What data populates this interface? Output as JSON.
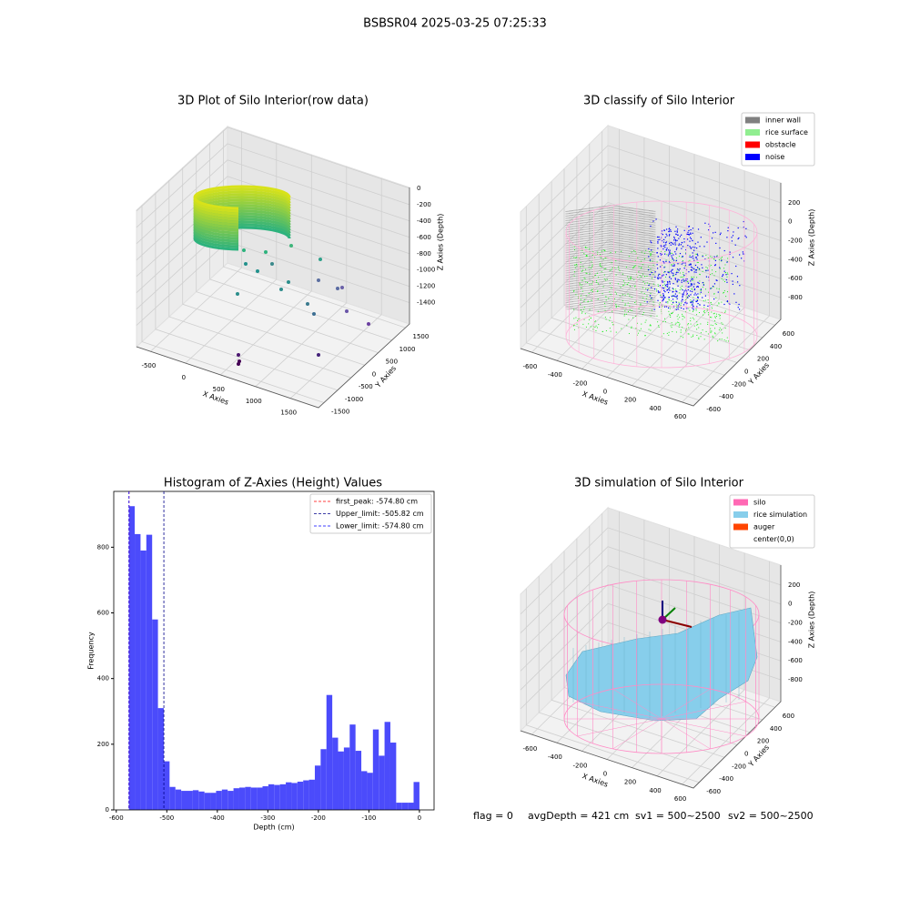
{
  "title": "BSBSR04 2025-03-25 07:25:33",
  "status": {
    "flag": "flag = 0",
    "avg_depth": "avgDepth = 421 cm",
    "sv1": "sv1 = 500~2500",
    "sv2": "sv2 = 500~2500"
  },
  "chart_data": [
    {
      "type": "scatter3d",
      "title": "3D Plot of Silo Interior(row data)",
      "xlabel": "X Axies",
      "ylabel": "Y Axies",
      "zlabel": "Z Axies (Depth)",
      "xlim": [
        -700,
        1900
      ],
      "ylim": [
        -1700,
        1650
      ],
      "zlim": [
        -1660,
        10
      ],
      "xticks": [
        -500,
        0,
        500,
        1000,
        1500
      ],
      "yticks": [
        -1500,
        -1000,
        -500,
        0,
        500,
        1000,
        1500
      ],
      "zticks": [
        -1400,
        -1200,
        -1000,
        -800,
        -600,
        -400,
        -200,
        0
      ]
    },
    {
      "type": "scatter3d",
      "title": "3D classify of Silo Interior",
      "xlabel": "X Axies",
      "ylabel": "Y Axies",
      "zlabel": "Z Axies (Depth)",
      "xlim": [
        -690,
        690
      ],
      "ylim": [
        -690,
        690
      ],
      "zlim": [
        -1030,
        410
      ],
      "xticks": [
        -600,
        -400,
        -200,
        0,
        200,
        400,
        600
      ],
      "yticks": [
        -600,
        -400,
        -200,
        0,
        200,
        400,
        600
      ],
      "zticks": [
        -800,
        -600,
        -400,
        -200,
        0,
        200
      ],
      "legend": [
        {
          "name": "inner wall",
          "color": "#808080"
        },
        {
          "name": "rice surface",
          "color": "#90ee90"
        },
        {
          "name": "obstacle",
          "color": "#ff0000"
        },
        {
          "name": "noise",
          "color": "#0000ff"
        }
      ]
    },
    {
      "type": "histogram",
      "title": "Histogram of Z-Axies (Height) Values",
      "xlabel": "Depth (cm)",
      "ylabel": "Frequency",
      "color": "#4b4bfb",
      "bins": [
        -575,
        -563.5,
        -552,
        -540.5,
        -529,
        -517.5,
        -506,
        -494.5,
        -483,
        -471.5,
        -460,
        -448.5,
        -437,
        -425.5,
        -414,
        -402.5,
        -391,
        -379.5,
        -368,
        -356.5,
        -345,
        -333.5,
        -322,
        -310.5,
        -299,
        -287.5,
        -276,
        -264.5,
        -253,
        -241.5,
        -230,
        -218.5,
        -207,
        -195.5,
        -184,
        -172.5,
        -161,
        -149.5,
        -138,
        -126.5,
        -115,
        -103.5,
        -92,
        -80.5,
        -69,
        -57.5,
        -46,
        -34.5,
        -23,
        -11.5,
        0
      ],
      "counts": [
        925,
        840,
        790,
        838,
        580,
        310,
        148,
        70,
        62,
        58,
        58,
        60,
        56,
        52,
        52,
        58,
        62,
        58,
        66,
        68,
        70,
        68,
        68,
        72,
        78,
        76,
        78,
        84,
        82,
        86,
        90,
        92,
        135,
        185,
        350,
        220,
        178,
        190,
        260,
        180,
        118,
        113,
        245,
        165,
        268,
        205,
        22,
        22,
        22,
        85
      ],
      "xlim": [
        -605,
        29
      ],
      "ylim": [
        0,
        970
      ],
      "xticks": [
        -600,
        -500,
        -400,
        -300,
        -200,
        -100,
        0
      ],
      "yticks": [
        0,
        200,
        400,
        600,
        800
      ],
      "vlines": [
        {
          "label": "first_peak: -574.80 cm",
          "value": -574.8,
          "color": "#ff0000"
        },
        {
          "label": "Upper_limit: -505.82 cm",
          "value": -505.82,
          "color": "#00008b"
        },
        {
          "label": "Lower_limit: -574.80 cm",
          "value": -574.8,
          "color": "#0000ff"
        }
      ]
    },
    {
      "type": "surface3d",
      "title": "3D simulation of Silo Interior",
      "xlabel": "X Axies",
      "ylabel": "Y Axies",
      "zlabel": "Z Axies (Depth)",
      "xlim": [
        -690,
        690
      ],
      "ylim": [
        -690,
        690
      ],
      "zlim": [
        -1030,
        410
      ],
      "xticks": [
        -600,
        -400,
        -200,
        0,
        200,
        400,
        600
      ],
      "yticks": [
        -600,
        -400,
        -200,
        0,
        200,
        400,
        600
      ],
      "zticks": [
        -800,
        -600,
        -400,
        -200,
        0,
        200
      ],
      "legend": [
        {
          "name": "silo",
          "color": "#ff69b4"
        },
        {
          "name": "rice simulation",
          "color": "#87ceeb"
        },
        {
          "name": "auger",
          "color": "#ff4500"
        },
        {
          "name": "center(0,0)"
        }
      ]
    }
  ]
}
